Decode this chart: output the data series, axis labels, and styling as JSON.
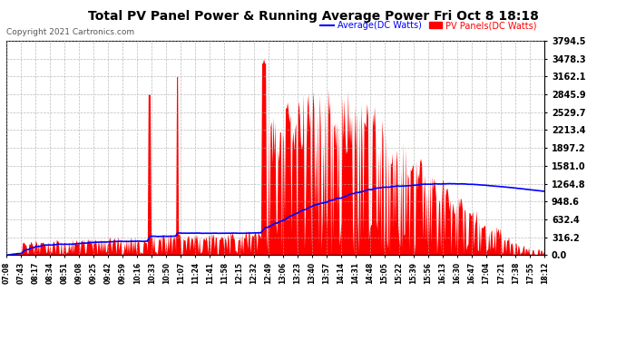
{
  "title": "Total PV Panel Power & Running Average Power Fri Oct 8 18:18",
  "copyright": "Copyright 2021 Cartronics.com",
  "legend_avg": "Average(DC Watts)",
  "legend_pv": "PV Panels(DC Watts)",
  "background_color": "#ffffff",
  "grid_color": "#aaaaaa",
  "pv_color": "#ff0000",
  "avg_color": "#0000ff",
  "ylim": [
    0,
    3794.5
  ],
  "yticks": [
    0.0,
    316.2,
    632.4,
    948.6,
    1264.8,
    1581.0,
    1897.2,
    2213.4,
    2529.7,
    2845.9,
    3162.1,
    3478.3,
    3794.5
  ],
  "xtick_labels": [
    "07:08",
    "07:43",
    "08:17",
    "08:34",
    "08:51",
    "09:08",
    "09:25",
    "09:42",
    "09:59",
    "10:16",
    "10:33",
    "10:50",
    "11:07",
    "11:24",
    "11:41",
    "11:58",
    "12:15",
    "12:32",
    "12:49",
    "13:06",
    "13:23",
    "13:40",
    "13:57",
    "14:14",
    "14:31",
    "14:48",
    "15:05",
    "15:22",
    "15:39",
    "15:56",
    "16:13",
    "16:30",
    "16:47",
    "17:04",
    "17:21",
    "17:38",
    "17:55",
    "18:12"
  ],
  "figsize": [
    6.9,
    3.75
  ],
  "dpi": 100
}
